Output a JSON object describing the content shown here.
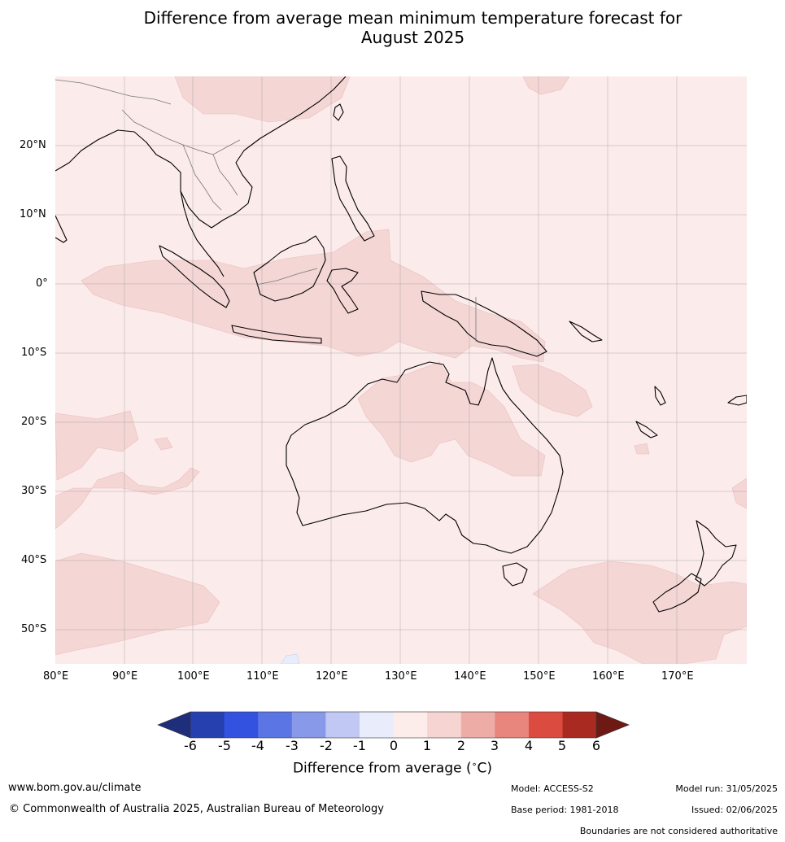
{
  "title": {
    "line1": "Difference from average mean minimum temperature forecast for",
    "line2": "August 2025"
  },
  "map": {
    "lat_labels": [
      "20°N",
      "10°N",
      "0°",
      "10°S",
      "20°S",
      "30°S",
      "40°S",
      "50°S"
    ],
    "lon_labels": [
      "80°E",
      "90°E",
      "100°E",
      "110°E",
      "120°E",
      "130°E",
      "140°E",
      "150°E",
      "160°E",
      "170°E"
    ],
    "colors": {
      "background_0_1": "#fbebea",
      "anomaly_1_2": "#f4d6d5",
      "coastline": "#000000",
      "gridline": "#9e9e9e",
      "border": "#777777"
    }
  },
  "colorbar": {
    "ticks": [
      "-6",
      "-5",
      "-4",
      "-3",
      "-2",
      "-1",
      "0",
      "1",
      "2",
      "3",
      "4",
      "5",
      "6"
    ],
    "colors": [
      "#1f2e7a",
      "#2640b0",
      "#3352e0",
      "#5c75e4",
      "#8899ea",
      "#c0c8f3",
      "#e9ecfa",
      "#fcecea",
      "#f5d4d2",
      "#eeaca7",
      "#e8857c",
      "#dc4b3f",
      "#a82a20",
      "#6e1a14"
    ],
    "label": "Difference from average (°C)",
    "label_text": "Difference from average (",
    "label_unit": "C)"
  },
  "footer": {
    "website": "www.bom.gov.au/climate",
    "copyright": "© Commonwealth of Australia 2025, Australian Bureau of Meteorology",
    "model": "Model: ACCESS-S2",
    "base_period": "Base period: 1981-2018",
    "model_run": "Model run: 31/05/2025",
    "issued": "Issued: 02/06/2025",
    "disclaimer": "Boundaries are not considered authoritative"
  }
}
